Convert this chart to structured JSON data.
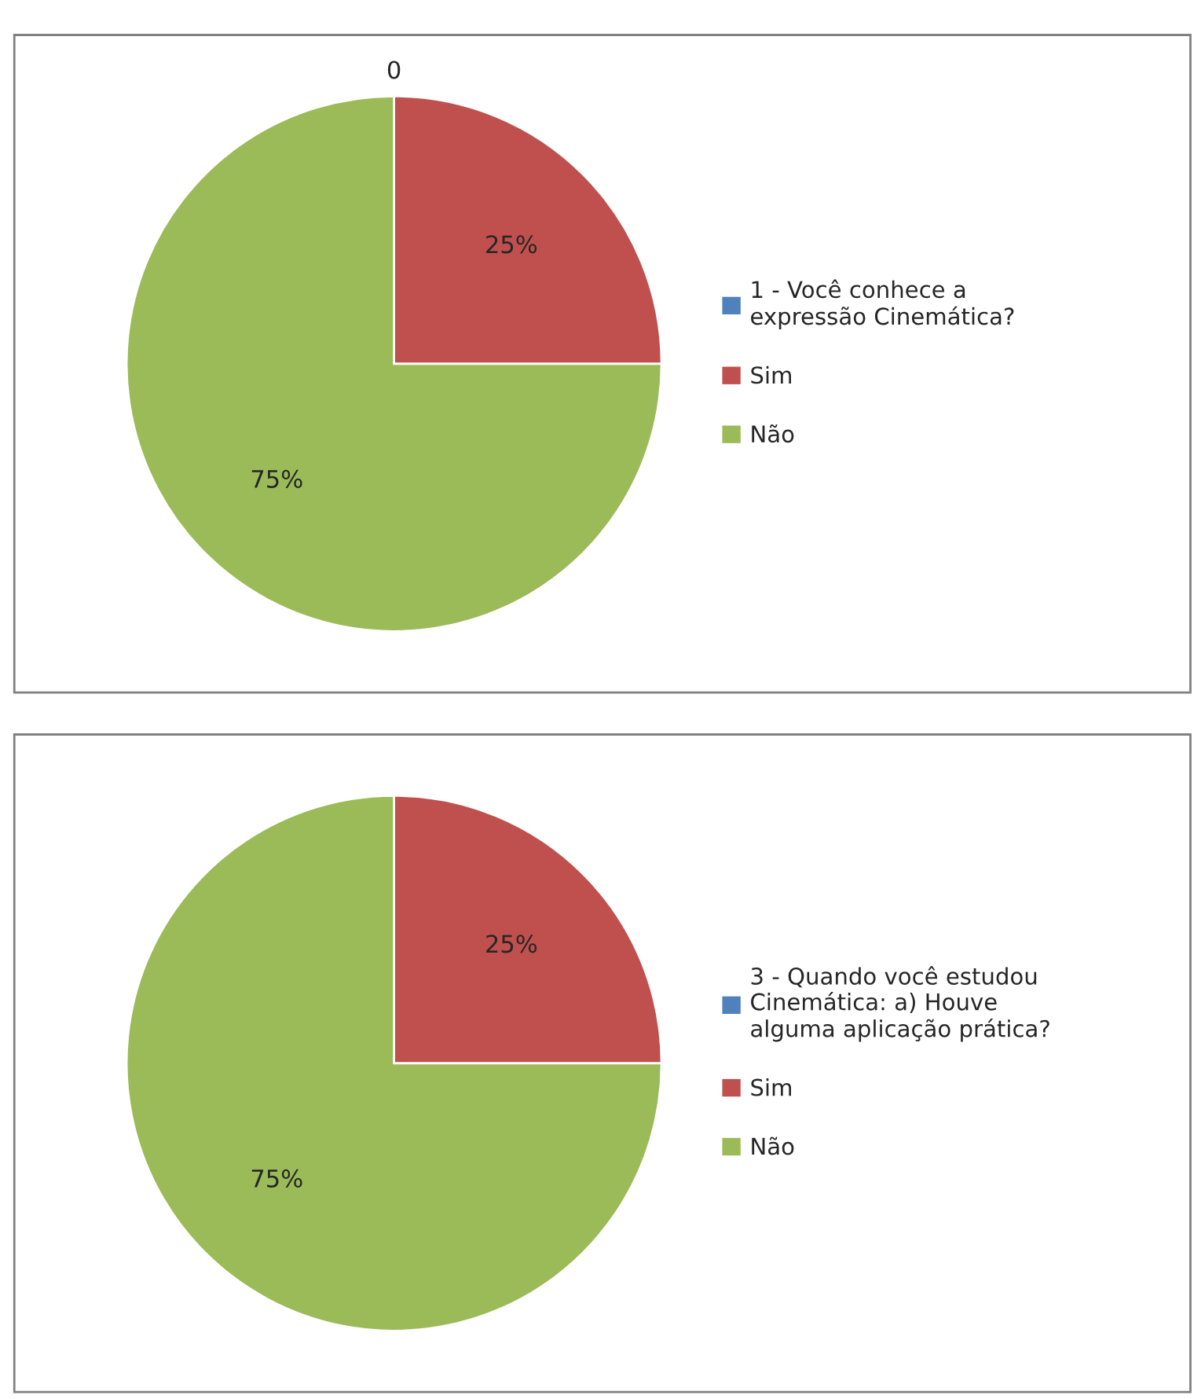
{
  "chart_data": [
    {
      "type": "pie",
      "categories": [
        "1 - Você conhece a expressão Cinemática?",
        "Sim",
        "Não"
      ],
      "values": [
        0,
        25,
        75
      ],
      "colors": [
        "#4f81bd",
        "#c0504d",
        "#9bbb59"
      ],
      "value_labels": [
        "0",
        "25%",
        "75%"
      ],
      "legend": "right"
    },
    {
      "type": "pie",
      "categories": [
        "3 - Quando você estudou Cinemática: a) Houve alguma aplicação prática?",
        "Sim",
        "Não"
      ],
      "values": [
        0,
        25,
        75
      ],
      "colors": [
        "#4f81bd",
        "#c0504d",
        "#9bbb59"
      ],
      "value_labels": [
        null,
        "25%",
        "75%"
      ],
      "legend": "right"
    }
  ]
}
